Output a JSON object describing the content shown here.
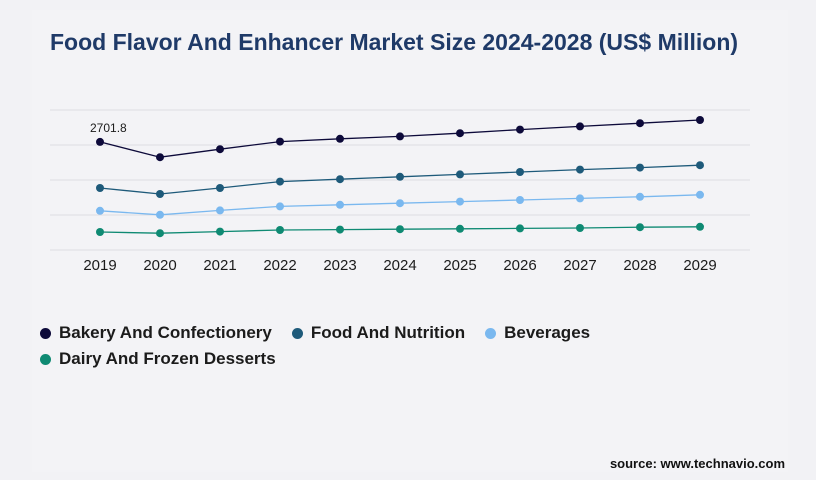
{
  "title": "Food Flavor And Enhancer Market Size 2024-2028 (US$ Million)",
  "source": "source: www.technavio.com",
  "chart_data": {
    "type": "line",
    "x": [
      "2019",
      "2020",
      "2021",
      "2022",
      "2023",
      "2024",
      "2025",
      "2026",
      "2027",
      "2028",
      "2029"
    ],
    "ylim": [
      0,
      3500
    ],
    "grid": true,
    "legend_position": "bottom-left",
    "annotations": [
      {
        "series": "Bakery And Confectionery",
        "x": "2019",
        "text": "2701.8"
      }
    ],
    "series": [
      {
        "name": "Bakery And Confectionery",
        "color": "#0d0a3a",
        "values": [
          2701.8,
          2320,
          2520,
          2710,
          2780,
          2840,
          2920,
          3010,
          3090,
          3170,
          3250
        ]
      },
      {
        "name": "Food And Nutrition",
        "color": "#1e5a7a",
        "values": [
          1550,
          1400,
          1550,
          1710,
          1770,
          1830,
          1890,
          1950,
          2010,
          2060,
          2120
        ]
      },
      {
        "name": "Beverages",
        "color": "#7ab8ef",
        "values": [
          980,
          880,
          990,
          1090,
          1130,
          1170,
          1210,
          1250,
          1290,
          1330,
          1380
        ]
      },
      {
        "name": "Dairy And Frozen Desserts",
        "color": "#0f8a73",
        "values": [
          450,
          420,
          460,
          500,
          510,
          520,
          530,
          540,
          550,
          570,
          580
        ]
      }
    ]
  }
}
